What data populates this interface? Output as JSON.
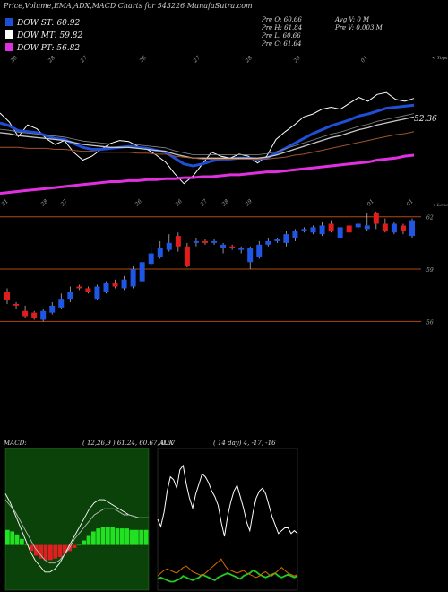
{
  "title": "Price,Volume,EMA,ADX,MACD Charts for 543226  MunafaSutra.com",
  "legend": [
    {
      "label": "DOW ST: 60.92",
      "color": "#1f4fd6"
    },
    {
      "label": "DOW MT: 59.82",
      "color": "#ffffff"
    },
    {
      "label": "DOW PT: 56.82",
      "color": "#e030e0"
    }
  ],
  "ohlc": {
    "open": "Pre  O: 60.66",
    "high": "Pre  H: 61.84",
    "low": "Pre  L: 60.66",
    "close": "Pre  C: 61.64",
    "avg_vol": "Avg V: 0  M",
    "pre_vol": "Pre  V: 0.003 M"
  },
  "macd_label": "MACD:",
  "macd_values": "( 12,26,9 ) 61.24, 60.67, 0.57",
  "adx_label": "ADX",
  "adx_values": "( 14  day) 4, -17, -16",
  "chart_data": [
    {
      "type": "line",
      "name": "ema-panel",
      "top_ticks": [
        "30",
        "28",
        "27",
        "26",
        "27",
        "28",
        "29",
        "01"
      ],
      "bottom_ticks": [
        "31",
        "28",
        "27",
        "26",
        "26",
        "27",
        "28",
        "29",
        "01",
        "01"
      ],
      "right_top_label": "< Tops",
      "right_bottom_label": "< Lows",
      "price_label": "52.36",
      "series": [
        {
          "name": "price",
          "color": "#ffffff",
          "values": [
            60.2,
            59.3,
            57.8,
            59.0,
            58.6,
            57.6,
            57.0,
            57.4,
            56.2,
            55.4,
            55.8,
            56.5,
            57.1,
            57.4,
            57.3,
            56.8,
            56.5,
            55.9,
            55.2,
            54.0,
            53.0,
            53.8,
            55.0,
            56.2,
            55.8,
            55.6,
            56.0,
            55.8,
            55.1,
            55.8,
            57.5,
            58.3,
            59.0,
            59.8,
            60.1,
            60.6,
            60.8,
            60.6,
            61.2,
            61.8,
            61.4,
            62.1,
            62.3,
            61.6,
            61.4,
            61.7
          ]
        },
        {
          "name": "ema-short",
          "color": "#1f4fd6",
          "values": [
            59.2,
            58.9,
            58.4,
            58.3,
            58.2,
            57.9,
            57.6,
            57.5,
            57.1,
            56.7,
            56.5,
            56.5,
            56.6,
            56.7,
            56.8,
            56.7,
            56.6,
            56.4,
            56.2,
            55.6,
            55.0,
            54.8,
            55.0,
            55.3,
            55.5,
            55.5,
            55.6,
            55.6,
            55.5,
            55.6,
            56.1,
            56.6,
            57.1,
            57.6,
            58.1,
            58.5,
            58.9,
            59.2,
            59.5,
            59.9,
            60.1,
            60.4,
            60.7,
            60.8,
            60.9,
            61.0
          ]
        },
        {
          "name": "ema-mid",
          "color": "#c8c8c8",
          "values": [
            58.2,
            58.1,
            57.9,
            57.8,
            57.7,
            57.6,
            57.5,
            57.4,
            57.2,
            57.0,
            56.9,
            56.8,
            56.7,
            56.7,
            56.7,
            56.6,
            56.5,
            56.4,
            56.3,
            56.0,
            55.8,
            55.6,
            55.6,
            55.6,
            55.6,
            55.6,
            55.6,
            55.6,
            55.6,
            55.7,
            55.9,
            56.2,
            56.5,
            56.8,
            57.1,
            57.4,
            57.7,
            57.9,
            58.2,
            58.5,
            58.7,
            59.0,
            59.2,
            59.4,
            59.6,
            59.8
          ]
        },
        {
          "name": "ema-long",
          "color": "#a0522d",
          "values": [
            56.7,
            56.7,
            56.7,
            56.6,
            56.6,
            56.6,
            56.5,
            56.5,
            56.4,
            56.3,
            56.3,
            56.2,
            56.2,
            56.2,
            56.2,
            56.1,
            56.1,
            56.0,
            56.0,
            55.8,
            55.7,
            55.6,
            55.5,
            55.5,
            55.5,
            55.5,
            55.5,
            55.5,
            55.5,
            55.5,
            55.6,
            55.7,
            55.9,
            56.0,
            56.2,
            56.4,
            56.6,
            56.8,
            57.0,
            57.2,
            57.4,
            57.6,
            57.8,
            58.0,
            58.1,
            58.3
          ]
        },
        {
          "name": "ema-pt",
          "color": "#e030e0",
          "values": [
            52.0,
            52.1,
            52.2,
            52.3,
            52.4,
            52.5,
            52.6,
            52.7,
            52.8,
            52.9,
            53.0,
            53.1,
            53.2,
            53.2,
            53.3,
            53.3,
            53.4,
            53.4,
            53.5,
            53.5,
            53.6,
            53.6,
            53.7,
            53.7,
            53.8,
            53.9,
            53.9,
            54.0,
            54.1,
            54.2,
            54.2,
            54.3,
            54.4,
            54.5,
            54.6,
            54.7,
            54.8,
            54.9,
            55.0,
            55.1,
            55.2,
            55.4,
            55.5,
            55.6,
            55.8,
            55.9
          ]
        }
      ],
      "ylim": [
        50.5,
        63.5
      ]
    },
    {
      "type": "candlestick",
      "name": "price-panel",
      "levels": [
        "62",
        "59",
        "56"
      ],
      "level_values": [
        62,
        59,
        56
      ],
      "ylim": [
        55.3,
        62.5
      ],
      "candles": [
        {
          "o": 57.7,
          "c": 57.2,
          "h": 57.9,
          "l": 57.0
        },
        {
          "o": 57.0,
          "c": 56.9,
          "h": 57.1,
          "l": 56.7
        },
        {
          "o": 56.6,
          "c": 56.3,
          "h": 56.9,
          "l": 56.2
        },
        {
          "o": 56.5,
          "c": 56.2,
          "h": 56.6,
          "l": 56.1
        },
        {
          "o": 56.1,
          "c": 56.6,
          "h": 56.7,
          "l": 56.0
        },
        {
          "o": 56.5,
          "c": 56.9,
          "h": 57.1,
          "l": 56.4
        },
        {
          "o": 56.8,
          "c": 57.3,
          "h": 57.6,
          "l": 56.7
        },
        {
          "o": 57.3,
          "c": 57.7,
          "h": 58.0,
          "l": 57.1
        },
        {
          "o": 58.0,
          "c": 57.9,
          "h": 58.1,
          "l": 57.8
        },
        {
          "o": 57.9,
          "c": 57.7,
          "h": 58.0,
          "l": 57.6
        },
        {
          "o": 57.3,
          "c": 58.0,
          "h": 58.1,
          "l": 57.2
        },
        {
          "o": 57.7,
          "c": 58.2,
          "h": 58.3,
          "l": 57.6
        },
        {
          "o": 58.2,
          "c": 58.0,
          "h": 58.4,
          "l": 57.9
        },
        {
          "o": 57.9,
          "c": 58.4,
          "h": 58.6,
          "l": 57.8
        },
        {
          "o": 58.0,
          "c": 59.0,
          "h": 59.2,
          "l": 57.9
        },
        {
          "o": 58.3,
          "c": 59.4,
          "h": 59.6,
          "l": 58.2
        },
        {
          "o": 59.3,
          "c": 59.9,
          "h": 60.3,
          "l": 59.2
        },
        {
          "o": 59.7,
          "c": 60.2,
          "h": 60.6,
          "l": 59.6
        },
        {
          "o": 60.1,
          "c": 60.5,
          "h": 61.0,
          "l": 60.0
        },
        {
          "o": 60.9,
          "c": 60.3,
          "h": 61.1,
          "l": 60.0
        },
        {
          "o": 60.3,
          "c": 59.2,
          "h": 60.5,
          "l": 59.1
        },
        {
          "o": 60.5,
          "c": 60.6,
          "h": 60.8,
          "l": 60.3
        },
        {
          "o": 60.6,
          "c": 60.5,
          "h": 60.7,
          "l": 60.4
        },
        {
          "o": 60.5,
          "c": 60.6,
          "h": 60.7,
          "l": 60.4
        },
        {
          "o": 60.2,
          "c": 60.4,
          "h": 60.5,
          "l": 59.9
        },
        {
          "o": 60.3,
          "c": 60.2,
          "h": 60.4,
          "l": 60.1
        },
        {
          "o": 60.1,
          "c": 60.2,
          "h": 60.3,
          "l": 59.9
        },
        {
          "o": 59.4,
          "c": 60.2,
          "h": 60.3,
          "l": 59.0
        },
        {
          "o": 59.7,
          "c": 60.4,
          "h": 60.6,
          "l": 59.6
        },
        {
          "o": 60.4,
          "c": 60.6,
          "h": 60.8,
          "l": 60.3
        },
        {
          "o": 60.6,
          "c": 60.7,
          "h": 60.8,
          "l": 60.5
        },
        {
          "o": 60.5,
          "c": 61.0,
          "h": 61.2,
          "l": 60.3
        },
        {
          "o": 60.8,
          "c": 61.2,
          "h": 61.3,
          "l": 60.6
        },
        {
          "o": 61.2,
          "c": 61.3,
          "h": 61.4,
          "l": 61.1
        },
        {
          "o": 61.1,
          "c": 61.4,
          "h": 61.5,
          "l": 61.0
        },
        {
          "o": 61.0,
          "c": 61.5,
          "h": 61.7,
          "l": 60.9
        },
        {
          "o": 61.6,
          "c": 61.2,
          "h": 61.8,
          "l": 61.1
        },
        {
          "o": 60.8,
          "c": 61.4,
          "h": 61.6,
          "l": 60.7
        },
        {
          "o": 61.5,
          "c": 61.1,
          "h": 61.7,
          "l": 61.0
        },
        {
          "o": 61.4,
          "c": 61.6,
          "h": 61.7,
          "l": 61.3
        },
        {
          "o": 61.3,
          "c": 61.5,
          "h": 62.2,
          "l": 61.2
        },
        {
          "o": 62.2,
          "c": 61.6,
          "h": 62.3,
          "l": 61.3
        },
        {
          "o": 61.6,
          "c": 61.2,
          "h": 61.9,
          "l": 61.1
        },
        {
          "o": 61.1,
          "c": 61.6,
          "h": 61.7,
          "l": 61.0
        },
        {
          "o": 61.5,
          "c": 61.2,
          "h": 61.6,
          "l": 61.0
        },
        {
          "o": 60.9,
          "c": 61.8,
          "h": 61.9,
          "l": 60.8
        }
      ]
    },
    {
      "type": "bar",
      "name": "macd-panel",
      "ylim": [
        -1.5,
        3.2
      ],
      "histogram": [
        0.5,
        0.45,
        0.35,
        0.2,
        0.0,
        -0.2,
        -0.35,
        -0.45,
        -0.5,
        -0.5,
        -0.45,
        -0.4,
        -0.3,
        -0.2,
        -0.1,
        0.0,
        0.15,
        0.3,
        0.45,
        0.55,
        0.6,
        0.6,
        0.6,
        0.55,
        0.55,
        0.55,
        0.5,
        0.5,
        0.5,
        0.5
      ],
      "series": [
        {
          "name": "macd",
          "color": "#ffffff",
          "values": [
            1.7,
            1.4,
            1.0,
            0.6,
            0.2,
            -0.2,
            -0.5,
            -0.7,
            -0.9,
            -0.9,
            -0.8,
            -0.6,
            -0.3,
            0.0,
            0.3,
            0.6,
            0.9,
            1.2,
            1.4,
            1.5,
            1.5,
            1.4,
            1.3,
            1.2,
            1.1,
            1.0,
            0.95,
            0.9,
            0.9,
            0.9
          ]
        },
        {
          "name": "signal",
          "color": "#bbbbbb",
          "values": [
            1.5,
            1.3,
            1.1,
            0.8,
            0.5,
            0.2,
            -0.1,
            -0.3,
            -0.5,
            -0.6,
            -0.6,
            -0.5,
            -0.3,
            -0.1,
            0.2,
            0.4,
            0.6,
            0.8,
            1.0,
            1.1,
            1.2,
            1.2,
            1.2,
            1.1,
            1.0,
            1.0,
            0.95,
            0.9,
            0.9,
            0.9
          ]
        }
      ]
    },
    {
      "type": "line",
      "name": "adx-panel",
      "ylim": [
        0,
        100
      ],
      "series": [
        {
          "name": "dx",
          "color": "#ffffff",
          "values": [
            50,
            45,
            55,
            70,
            80,
            78,
            72,
            85,
            88,
            75,
            65,
            58,
            68,
            75,
            82,
            80,
            76,
            70,
            66,
            60,
            48,
            38,
            52,
            62,
            70,
            74,
            66,
            58,
            48,
            42,
            55,
            65,
            70,
            72,
            68,
            60,
            52,
            46,
            40,
            42,
            44,
            44,
            40,
            42,
            40
          ]
        },
        {
          "name": "plus-di",
          "color": "#22cc22",
          "values": [
            8,
            9,
            8,
            7,
            6,
            6,
            7,
            8,
            10,
            9,
            8,
            7,
            8,
            9,
            11,
            10,
            9,
            8,
            7,
            9,
            10,
            11,
            12,
            11,
            10,
            9,
            8,
            10,
            11,
            12,
            14,
            13,
            11,
            10,
            9,
            10,
            11,
            12,
            10,
            9,
            10,
            11,
            10,
            9,
            10
          ]
        },
        {
          "name": "minus-di",
          "color": "#d26a00",
          "values": [
            10,
            12,
            14,
            15,
            14,
            13,
            12,
            14,
            16,
            17,
            15,
            13,
            12,
            11,
            10,
            12,
            14,
            16,
            18,
            20,
            22,
            18,
            15,
            14,
            13,
            12,
            13,
            14,
            12,
            11,
            10,
            9,
            10,
            12,
            13,
            11,
            10,
            12,
            14,
            16,
            14,
            12,
            11,
            10,
            11
          ]
        }
      ]
    }
  ]
}
